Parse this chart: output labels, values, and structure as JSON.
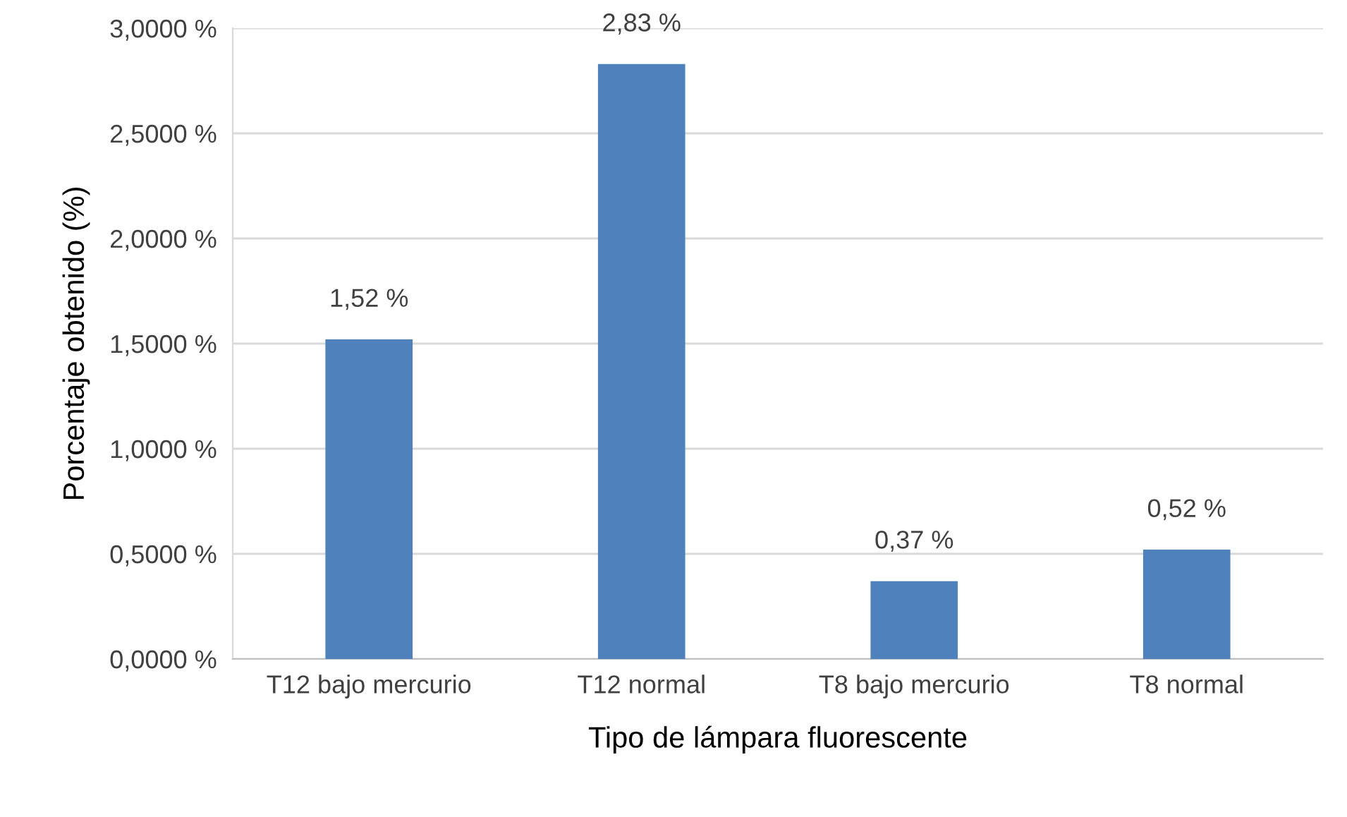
{
  "chart_data": {
    "type": "bar",
    "xlabel": "Tipo de lámpara fluorescente",
    "ylabel": "Porcentaje obtenido (%)",
    "categories": [
      "T12 bajo mercurio",
      "T12 normal",
      "T8 bajo mercurio",
      "T8 normal"
    ],
    "values": [
      1.52,
      2.83,
      0.37,
      0.52
    ],
    "value_labels": [
      "1,52 %",
      "2,83 %",
      "0,37 %",
      "0,52 %"
    ],
    "color": "#4f81bd",
    "ylim": [
      0,
      3
    ],
    "yticks": [
      {
        "value": 0,
        "label": "0,0000 %"
      },
      {
        "value": 0.5,
        "label": "0,5000 %"
      },
      {
        "value": 1,
        "label": "1,0000 %"
      },
      {
        "value": 1.5,
        "label": "1,5000 %"
      },
      {
        "value": 2,
        "label": "2,0000 %"
      },
      {
        "value": 2.5,
        "label": "2,5000 %"
      },
      {
        "value": 3,
        "label": "3,0000 %"
      }
    ],
    "grid": "y",
    "legend": false
  }
}
